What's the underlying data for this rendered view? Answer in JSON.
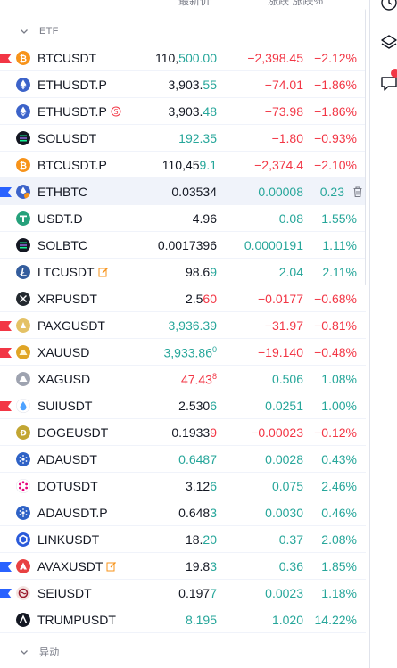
{
  "header": {
    "last_label": "最新价",
    "chg_label": "涨跌  涨跌%"
  },
  "sections": [
    {
      "title": "ETF",
      "top": 20
    },
    {
      "title": "异动",
      "top": 716
    }
  ],
  "colors": {
    "up": "#26a69a",
    "down": "#f23645",
    "flag": "#f23645",
    "flag_blue": "#2962ff"
  },
  "rows": [
    {
      "symbol": "BTCUSDT",
      "flag": "red",
      "icon": "btc-icon",
      "last_a": "110,",
      "last_b": "500.00",
      "last_dir": "up",
      "chg": "−2,398.45",
      "pct": "−2.12%",
      "dir": "down"
    },
    {
      "symbol": "ETHUSDT.P",
      "flag": "",
      "icon": "eth-icon",
      "last_a": "3,903.",
      "last_b": "55",
      "last_dir": "up",
      "chg": "−74.01",
      "pct": "−1.86%",
      "dir": "down"
    },
    {
      "symbol": "ETHUSDT.P",
      "flag": "",
      "icon": "eth-icon",
      "extra": "spread-icon",
      "last_a": "3,903.",
      "last_b": "48",
      "last_dir": "up",
      "chg": "−73.98",
      "pct": "−1.86%",
      "dir": "down"
    },
    {
      "symbol": "SOLUSDT",
      "flag": "",
      "icon": "sol-icon",
      "last_a": "",
      "last_b": "192.35",
      "last_dir": "up",
      "chg": "−1.80",
      "pct": "−0.93%",
      "dir": "down"
    },
    {
      "symbol": "BTCUSDT.P",
      "flag": "",
      "icon": "btc-icon",
      "last_a": "110,45",
      "last_b": "9.1",
      "last_dir": "up",
      "chg": "−2,374.4",
      "pct": "−2.10%",
      "dir": "down"
    },
    {
      "symbol": "ETHBTC",
      "flag": "blue",
      "icon": "eth-btc-icon",
      "last_a": "0.03534",
      "last_b": "",
      "last_dir": "up",
      "chg": "0.00008",
      "pct": "0.23",
      "dir": "up",
      "highlight": true,
      "trash": true
    },
    {
      "symbol": "USDT.D",
      "flag": "",
      "icon": "usdt-icon",
      "last_a": "4.96",
      "last_b": "",
      "last_dir": "up",
      "chg": "0.08",
      "pct": "1.55%",
      "dir": "up"
    },
    {
      "symbol": "SOLBTC",
      "flag": "",
      "icon": "sol-icon",
      "last_a": "0.0017396",
      "last_b": "",
      "last_dir": "up",
      "chg": "0.0000191",
      "pct": "1.11%",
      "dir": "up"
    },
    {
      "symbol": "LTCUSDT",
      "flag": "",
      "icon": "ltc-icon",
      "extra": "edit-icon",
      "last_a": "98.6",
      "last_b": "9",
      "last_dir": "up",
      "chg": "2.04",
      "pct": "2.11%",
      "dir": "up"
    },
    {
      "symbol": "XRPUSDT",
      "flag": "",
      "icon": "xrp-icon",
      "last_a": "2.5",
      "last_b": "60",
      "last_dir": "down",
      "chg": "−0.0177",
      "pct": "−0.68%",
      "dir": "down"
    },
    {
      "symbol": "PAXGUSDT",
      "flag": "red",
      "icon": "paxg-icon",
      "last_a": "",
      "last_b": "3,936.39",
      "last_dir": "up",
      "chg": "−31.97",
      "pct": "−0.81%",
      "dir": "down"
    },
    {
      "symbol": "XAUUSD",
      "flag": "red",
      "icon": "gold-icon",
      "last_a": "",
      "last_b": "3,933.86",
      "last_sup": "0",
      "last_dir": "up",
      "chg": "−19.140",
      "pct": "−0.48%",
      "dir": "down"
    },
    {
      "symbol": "XAGUSD",
      "flag": "",
      "icon": "silver-icon",
      "last_a": "",
      "last_b": "47.43",
      "last_sup": "8",
      "last_dir": "down",
      "chg": "0.506",
      "pct": "1.08%",
      "dir": "up"
    },
    {
      "symbol": "SUIUSDT",
      "flag": "red",
      "icon": "sui-icon",
      "last_a": "2.530",
      "last_b": "6",
      "last_dir": "up",
      "chg": "0.0251",
      "pct": "1.00%",
      "dir": "up"
    },
    {
      "symbol": "DOGEUSDT",
      "flag": "",
      "icon": "doge-icon",
      "last_a": "0.1933",
      "last_b": "9",
      "last_dir": "down",
      "chg": "−0.00023",
      "pct": "−0.12%",
      "dir": "down"
    },
    {
      "symbol": "ADAUSDT",
      "flag": "",
      "icon": "ada-icon",
      "last_a": "",
      "last_b": "0.6487",
      "last_dir": "up",
      "chg": "0.0028",
      "pct": "0.43%",
      "dir": "up"
    },
    {
      "symbol": "DOTUSDT",
      "flag": "",
      "icon": "dot-icon",
      "last_a": "3.12",
      "last_b": "6",
      "last_dir": "up",
      "chg": "0.075",
      "pct": "2.46%",
      "dir": "up"
    },
    {
      "symbol": "ADAUSDT.P",
      "flag": "",
      "icon": "ada-icon",
      "last_a": "0.648",
      "last_b": "3",
      "last_dir": "up",
      "chg": "0.0030",
      "pct": "0.46%",
      "dir": "up"
    },
    {
      "symbol": "LINKUSDT",
      "flag": "",
      "icon": "link-icon",
      "last_a": "18.",
      "last_b": "20",
      "last_dir": "up",
      "chg": "0.37",
      "pct": "2.08%",
      "dir": "up"
    },
    {
      "symbol": "AVAXUSDT",
      "flag": "blue",
      "icon": "avax-icon",
      "extra": "edit-icon",
      "last_a": "19.8",
      "last_b": "3",
      "last_dir": "up",
      "chg": "0.36",
      "pct": "1.85%",
      "dir": "up"
    },
    {
      "symbol": "SEIUSDT",
      "flag": "blue",
      "icon": "sei-icon",
      "last_a": "0.197",
      "last_b": "7",
      "last_dir": "up",
      "chg": "0.0023",
      "pct": "1.18%",
      "dir": "up"
    },
    {
      "symbol": "TRUMPUSDT",
      "flag": "",
      "icon": "trump-icon",
      "last_a": "",
      "last_b": "8.195",
      "last_dir": "up",
      "chg": "1.020",
      "pct": "14.22%",
      "dir": "up"
    }
  ]
}
